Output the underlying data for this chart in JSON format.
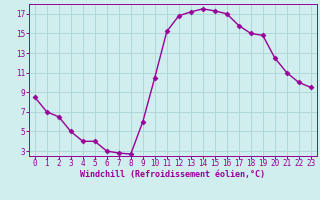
{
  "x": [
    0,
    1,
    2,
    3,
    4,
    5,
    6,
    7,
    8,
    9,
    10,
    11,
    12,
    13,
    14,
    15,
    16,
    17,
    18,
    19,
    20,
    21,
    22,
    23
  ],
  "y": [
    8.5,
    7.0,
    6.5,
    5.0,
    4.0,
    4.0,
    3.0,
    2.8,
    2.7,
    6.0,
    10.5,
    15.2,
    16.8,
    17.2,
    17.5,
    17.3,
    17.0,
    15.8,
    15.0,
    14.8,
    12.5,
    11.0,
    10.0,
    9.5
  ],
  "line_color": "#990099",
  "marker_color": "#990099",
  "bg_color": "#d0eeee",
  "grid_color": "#b0d8d8",
  "xlabel": "Windchill (Refroidissement éolien,°C)",
  "xlabel_color": "#990099",
  "tick_color": "#990099",
  "spine_color": "#990099",
  "ylim": [
    2.5,
    18.0
  ],
  "xlim": [
    -0.5,
    23.5
  ],
  "yticks": [
    3,
    5,
    7,
    9,
    11,
    13,
    15,
    17
  ],
  "xticks": [
    0,
    1,
    2,
    3,
    4,
    5,
    6,
    7,
    8,
    9,
    10,
    11,
    12,
    13,
    14,
    15,
    16,
    17,
    18,
    19,
    20,
    21,
    22,
    23
  ],
  "figsize": [
    3.2,
    2.0
  ],
  "dpi": 100,
  "tick_labelsize": 5.5,
  "xlabel_fontsize": 6.0,
  "linewidth": 1.0,
  "markersize": 2.5
}
